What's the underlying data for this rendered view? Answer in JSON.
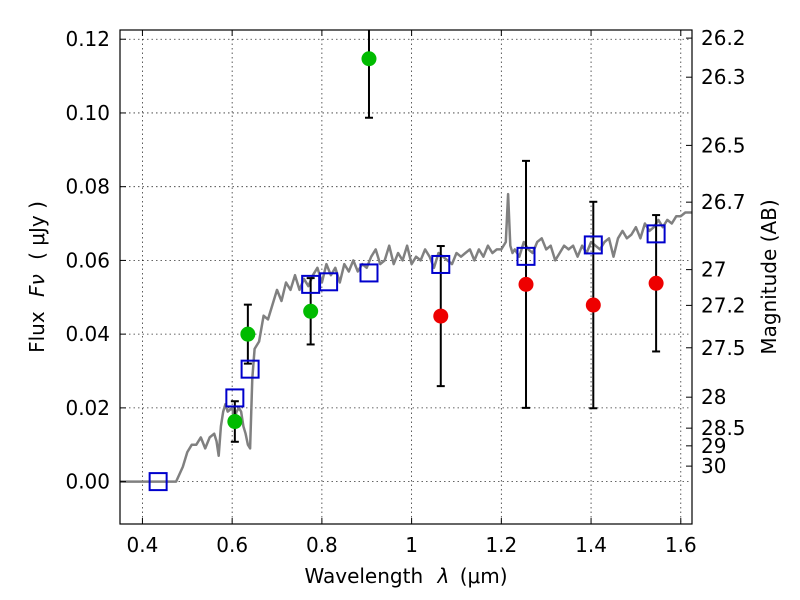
{
  "chart_data": {
    "type": "scatter",
    "title": "",
    "xlabel_text": "Wavelength",
    "xlabel_symbol": "λ",
    "xlabel_unit": "(μm)",
    "ylabel_text": "Flux",
    "ylabel_symbol": "Fν",
    "ylabel_unit": "( μJy )",
    "y2label": "Magnitude (AB)",
    "xlim": [
      0.35,
      1.625
    ],
    "ylim": [
      -0.0115,
      0.1225
    ],
    "grid": true,
    "xticks": [
      {
        "value": 0.4,
        "label": "0.4"
      },
      {
        "value": 0.6,
        "label": "0.6"
      },
      {
        "value": 0.8,
        "label": "0.8"
      },
      {
        "value": 1.0,
        "label": "1"
      },
      {
        "value": 1.2,
        "label": "1.2"
      },
      {
        "value": 1.4,
        "label": "1.4"
      },
      {
        "value": 1.6,
        "label": "1.6"
      }
    ],
    "yticks": [
      {
        "value": 0.0,
        "label": "0.00"
      },
      {
        "value": 0.02,
        "label": "0.02"
      },
      {
        "value": 0.04,
        "label": "0.04"
      },
      {
        "value": 0.06,
        "label": "0.06"
      },
      {
        "value": 0.08,
        "label": "0.08"
      },
      {
        "value": 0.1,
        "label": "0.10"
      },
      {
        "value": 0.12,
        "label": "0.12"
      }
    ],
    "mag_ticks": [
      {
        "flux": 0.1203,
        "label": "26.2"
      },
      {
        "flux": 0.1097,
        "label": "26.3"
      },
      {
        "flux": 0.0912,
        "label": "26.5"
      },
      {
        "flux": 0.0758,
        "label": "26.7"
      },
      {
        "flux": 0.0575,
        "label": "27"
      },
      {
        "flux": 0.0478,
        "label": "27.2"
      },
      {
        "flux": 0.0363,
        "label": "27.5"
      },
      {
        "flux": 0.0229,
        "label": "28"
      },
      {
        "flux": 0.0145,
        "label": "28.5"
      },
      {
        "flux": 0.0097,
        "label": "29"
      },
      {
        "flux": 0.0042,
        "label": "30"
      }
    ],
    "series": [
      {
        "name": "template-spectrum",
        "kind": "line",
        "color": "#808080",
        "x": [
          0.35,
          0.4,
          0.45,
          0.475,
          0.49,
          0.5,
          0.51,
          0.52,
          0.53,
          0.54,
          0.55,
          0.56,
          0.565,
          0.57,
          0.575,
          0.58,
          0.585,
          0.59,
          0.6,
          0.605,
          0.61,
          0.615,
          0.62,
          0.625,
          0.63,
          0.635,
          0.64,
          0.645,
          0.65,
          0.66,
          0.67,
          0.68,
          0.69,
          0.7,
          0.71,
          0.72,
          0.73,
          0.74,
          0.75,
          0.76,
          0.77,
          0.78,
          0.79,
          0.8,
          0.81,
          0.82,
          0.83,
          0.84,
          0.85,
          0.86,
          0.87,
          0.88,
          0.89,
          0.9,
          0.91,
          0.92,
          0.93,
          0.94,
          0.95,
          0.96,
          0.97,
          0.98,
          0.99,
          1.0,
          1.01,
          1.02,
          1.03,
          1.04,
          1.05,
          1.06,
          1.07,
          1.08,
          1.09,
          1.1,
          1.11,
          1.12,
          1.13,
          1.14,
          1.15,
          1.16,
          1.17,
          1.18,
          1.19,
          1.2,
          1.21,
          1.215,
          1.22,
          1.225,
          1.23,
          1.24,
          1.25,
          1.26,
          1.27,
          1.28,
          1.29,
          1.3,
          1.31,
          1.32,
          1.33,
          1.34,
          1.35,
          1.36,
          1.37,
          1.38,
          1.39,
          1.4,
          1.41,
          1.42,
          1.43,
          1.44,
          1.45,
          1.46,
          1.47,
          1.48,
          1.49,
          1.5,
          1.51,
          1.52,
          1.53,
          1.54,
          1.55,
          1.56,
          1.57,
          1.58,
          1.59,
          1.6,
          1.61,
          1.625
        ],
        "y": [
          0.0,
          0.0,
          0.0,
          0.0,
          0.004,
          0.008,
          0.01,
          0.01,
          0.012,
          0.009,
          0.012,
          0.013,
          0.011,
          0.007,
          0.015,
          0.019,
          0.021,
          0.019,
          0.02,
          0.017,
          0.019,
          0.02,
          0.019,
          0.015,
          0.013,
          0.01,
          0.009,
          0.028,
          0.036,
          0.038,
          0.045,
          0.044,
          0.048,
          0.052,
          0.049,
          0.054,
          0.052,
          0.056,
          0.052,
          0.055,
          0.053,
          0.056,
          0.058,
          0.054,
          0.059,
          0.056,
          0.058,
          0.054,
          0.059,
          0.057,
          0.06,
          0.057,
          0.059,
          0.058,
          0.061,
          0.063,
          0.059,
          0.06,
          0.064,
          0.059,
          0.062,
          0.06,
          0.064,
          0.059,
          0.061,
          0.06,
          0.063,
          0.061,
          0.058,
          0.062,
          0.061,
          0.06,
          0.059,
          0.062,
          0.061,
          0.062,
          0.063,
          0.06,
          0.063,
          0.061,
          0.064,
          0.062,
          0.063,
          0.063,
          0.065,
          0.078,
          0.064,
          0.062,
          0.063,
          0.061,
          0.065,
          0.063,
          0.062,
          0.065,
          0.066,
          0.063,
          0.064,
          0.06,
          0.062,
          0.064,
          0.063,
          0.064,
          0.061,
          0.064,
          0.062,
          0.065,
          0.064,
          0.063,
          0.065,
          0.066,
          0.061,
          0.066,
          0.068,
          0.066,
          0.067,
          0.069,
          0.066,
          0.07,
          0.068,
          0.069,
          0.071,
          0.069,
          0.071,
          0.07,
          0.072,
          0.072,
          0.073,
          0.073
        ]
      },
      {
        "name": "model-photometry",
        "kind": "open-square",
        "color": "#0000cc",
        "x": [
          0.435,
          0.606,
          0.64,
          0.775,
          0.815,
          0.905,
          1.065,
          1.255,
          1.405,
          1.545
        ],
        "y": [
          0.0,
          0.0227,
          0.0305,
          0.0535,
          0.0542,
          0.0566,
          0.0589,
          0.0611,
          0.0642,
          0.0672
        ]
      },
      {
        "name": "optical-detections",
        "kind": "filled-circle",
        "color": "#00bb00",
        "x": [
          0.606,
          0.635,
          0.775,
          0.905
        ],
        "y": [
          0.0163,
          0.04,
          0.0462,
          0.1147
        ],
        "err_low": [
          0.0055,
          0.008,
          0.009,
          0.016
        ],
        "err_high": [
          0.0055,
          0.008,
          0.009,
          0.016
        ]
      },
      {
        "name": "nir-measurements",
        "kind": "filled-circle",
        "color": "#ee0000",
        "x": [
          1.065,
          1.255,
          1.405,
          1.545
        ],
        "y": [
          0.0449,
          0.0535,
          0.0479,
          0.0538
        ],
        "err_low": [
          0.019,
          0.0335,
          0.028,
          0.0185
        ],
        "err_high": [
          0.019,
          0.0335,
          0.028,
          0.0185
        ]
      }
    ]
  }
}
